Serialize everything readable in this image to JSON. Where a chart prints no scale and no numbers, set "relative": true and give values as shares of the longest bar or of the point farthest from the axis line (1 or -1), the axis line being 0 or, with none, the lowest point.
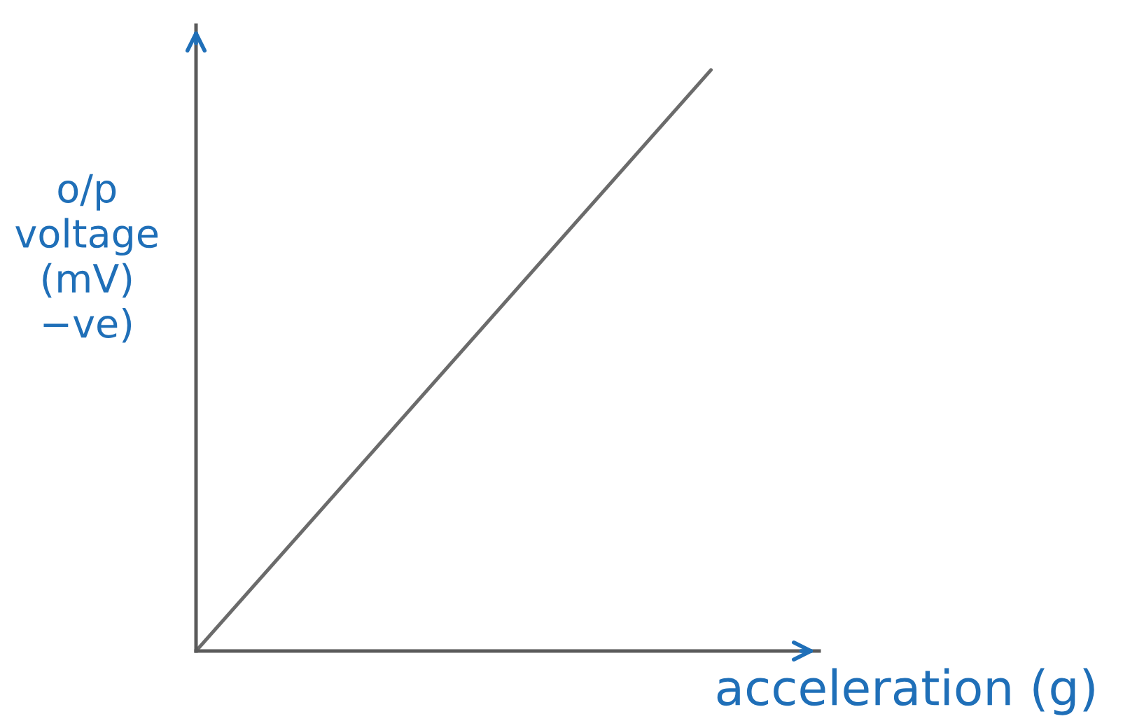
{
  "chart_data": {
    "type": "line",
    "xlabel": "acceleration (g)",
    "ylabel": "o/p voltage (mV) −ve)",
    "categories": [
      null,
      null
    ],
    "values": [
      0,
      1
    ],
    "color": "#6b6b6b",
    "relative": true,
    "tick_labels": false
  }
}
